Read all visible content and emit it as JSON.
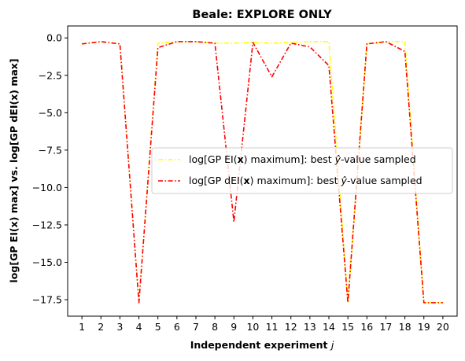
{
  "chart_data": {
    "type": "line",
    "title": "Beale: EXPLORE ONLY",
    "xlabel": "Independent experiment j",
    "xlabel_main": "Independent experiment ",
    "xlabel_var": "j",
    "ylabel": "log[GP EI(x) max] vs. log[GP dEI(x) max]",
    "xlim": [
      0.25,
      20.75
    ],
    "ylim": [
      -18.6,
      0.8
    ],
    "x": [
      1,
      2,
      3,
      4,
      5,
      6,
      7,
      8,
      9,
      10,
      11,
      12,
      13,
      14,
      15,
      16,
      17,
      18,
      19,
      20
    ],
    "x_ticks": [
      "1",
      "2",
      "3",
      "4",
      "5",
      "6",
      "7",
      "8",
      "9",
      "10",
      "11",
      "12",
      "13",
      "14",
      "15",
      "16",
      "17",
      "18",
      "19",
      "20"
    ],
    "y_ticks": [
      {
        "value": 0,
        "label": "0.0"
      },
      {
        "value": -2.5,
        "label": "−2.5"
      },
      {
        "value": -5,
        "label": "−5.0"
      },
      {
        "value": -7.5,
        "label": "−7.5"
      },
      {
        "value": -10,
        "label": "−10.0"
      },
      {
        "value": -12.5,
        "label": "−12.5"
      },
      {
        "value": -15,
        "label": "−15.0"
      },
      {
        "value": -17.5,
        "label": "−17.5"
      }
    ],
    "grid": false,
    "legend_position": "center-right",
    "series": [
      {
        "name": "log[GP EI(x) maximum]: best ŷ-value sampled",
        "legend_parts": [
          "log[GP EI(",
          "x",
          ") maximum]: best ",
          "ŷ",
          "-value sampled"
        ],
        "color": "#ffff00",
        "values": [
          -0.4,
          -0.25,
          -0.4,
          -17.7,
          -0.35,
          -0.25,
          -0.25,
          -0.35,
          -0.35,
          -0.3,
          -0.35,
          -0.3,
          -0.25,
          -0.25,
          -17.7,
          -0.4,
          -0.25,
          -0.25,
          -17.7,
          -17.7
        ]
      },
      {
        "name": "log[GP dEI(x) maximum]: best ŷ-value sampled",
        "legend_parts": [
          "log[GP dEI(",
          "x",
          ") maximum]: best ",
          "ŷ",
          "-value sampled"
        ],
        "color": "#ff0000",
        "values": [
          -0.4,
          -0.25,
          -0.4,
          -17.7,
          -0.65,
          -0.25,
          -0.25,
          -0.35,
          -12.3,
          -0.3,
          -2.6,
          -0.35,
          -0.6,
          -1.85,
          -17.7,
          -0.4,
          -0.25,
          -0.9,
          -17.7,
          -17.7
        ]
      }
    ]
  }
}
